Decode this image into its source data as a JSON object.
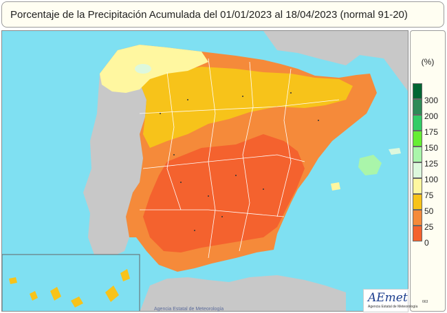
{
  "title": "Porcentaje de la Precipitación Acumulada  del 01/01/2023 al 18/04/2023  (normal 91-20)",
  "legend": {
    "unit": "(%)",
    "levels": [
      {
        "label": "300",
        "color": "#006633"
      },
      {
        "label": "200",
        "color": "#2e8b57"
      },
      {
        "label": "175",
        "color": "#33cc66"
      },
      {
        "label": "150",
        "color": "#66ee33"
      },
      {
        "label": "125",
        "color": "#aaf5aa"
      },
      {
        "label": "100",
        "color": "#ddf8dd"
      },
      {
        "label": "75",
        "color": "#fff7a0"
      },
      {
        "label": "50",
        "color": "#f7c31a"
      },
      {
        "label": "25",
        "color": "#f58a3a"
      },
      {
        "label": "0",
        "color": "#f4622e"
      }
    ]
  },
  "credit": "Agencia Estatal de Meteorología",
  "logo": {
    "word": "AEmet",
    "subtitle": "Agencia Estatal de Meteorología"
  },
  "code": "663",
  "colors": {
    "sea": "#7fe0f2",
    "land_outside": "#c8c8c8",
    "boundaries": "#ffffff"
  }
}
